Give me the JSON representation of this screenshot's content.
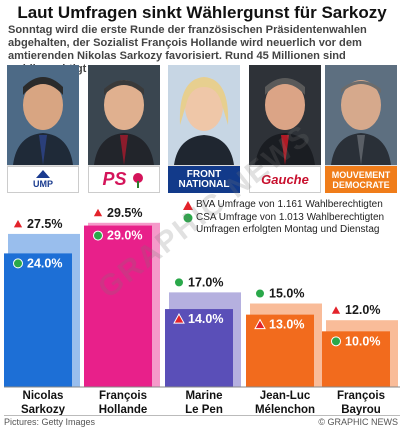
{
  "title": "Laut Umfragen sinkt Wählergunst für Sarkozy",
  "subtitle": "Sonntag wird die erste Runde der französischen Präsidentenwahlen abgehalten, der Sozialist François Hollande wird neuerlich vor dem amtierenden Nikolas Sarkozy favorisiert. Rund 45 Millionen sind wahlberechtigt",
  "logos": {
    "ump": "UMP",
    "ps": "PS",
    "fn_line1": "FRONT",
    "fn_line2": "NATIONAL",
    "fg": "Gauche",
    "md_line1": "MOUVEMENT",
    "md_line2": "DEMOCRATE"
  },
  "legend": {
    "bva": "BVA Umfrage von 1.161 Wahlberechtigten",
    "csa": "CSA Umfrage von 1.013 Wahlberechtigten",
    "note": "Umfragen erfolgten Montag und Dienstag"
  },
  "footer": {
    "credit": "Pictures: Getty Images",
    "source": "© GRAPHIC NEWS"
  },
  "watermark": "GRAPHIC NEWS",
  "colors": {
    "sarkozy": "#1d6fd6",
    "hollande": "#e8208a",
    "lepen": "#5a4fb8",
    "melenchon": "#f26b1d",
    "bayrou": "#f26b1d",
    "bva_marker": "#e3232b",
    "csa_marker": "#2aa84a"
  },
  "chart_data": {
    "type": "bar",
    "categories": [
      "Nicolas Sarkozy",
      "François Hollande",
      "Marine Le Pen",
      "Jean-Luc Mélenchon",
      "François Bayrou"
    ],
    "category_lines": [
      [
        "Nicolas",
        "Sarkozy"
      ],
      [
        "François",
        "Hollande"
      ],
      [
        "Marine",
        "Le Pen"
      ],
      [
        "Jean-Luc",
        "Mélenchon"
      ],
      [
        "François",
        "Bayrou"
      ]
    ],
    "series": [
      {
        "name": "BVA Umfrage von 1.161 Wahlberechtigten",
        "marker": "triangle",
        "values": [
          27.5,
          29.5,
          14.0,
          13.0,
          12.0
        ],
        "labels": [
          "27.5%",
          "29.5%",
          "14.0%",
          "13.0%",
          "12.0%"
        ]
      },
      {
        "name": "CSA Umfrage von 1.013 Wahlberechtigten",
        "marker": "circle",
        "values": [
          24.0,
          29.0,
          17.0,
          15.0,
          10.0
        ],
        "labels": [
          "24.0%",
          "29.0%",
          "17.0%",
          "15.0%",
          "10.0%"
        ]
      }
    ],
    "ylim": [
      0,
      30
    ],
    "grid": false,
    "legend_position": "top-right"
  }
}
